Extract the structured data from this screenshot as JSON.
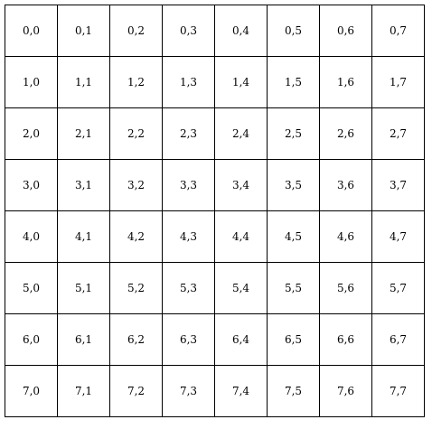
{
  "grid": {
    "rows": [
      [
        "0,0",
        "0,1",
        "0,2",
        "0,3",
        "0,4",
        "0,5",
        "0,6",
        "0,7"
      ],
      [
        "1,0",
        "1,1",
        "1,2",
        "1,3",
        "1,4",
        "1,5",
        "1,6",
        "1,7"
      ],
      [
        "2,0",
        "2,1",
        "2,2",
        "2,3",
        "2,4",
        "2,5",
        "2,6",
        "2,7"
      ],
      [
        "3,0",
        "3,1",
        "3,2",
        "3,3",
        "3,4",
        "3,5",
        "3,6",
        "3,7"
      ],
      [
        "4,0",
        "4,1",
        "4,2",
        "4,3",
        "4,4",
        "4,5",
        "4,6",
        "4,7"
      ],
      [
        "5,0",
        "5,1",
        "5,2",
        "5,3",
        "5,4",
        "5,5",
        "5,6",
        "5,7"
      ],
      [
        "6,0",
        "6,1",
        "6,2",
        "6,3",
        "6,4",
        "6,5",
        "6,6",
        "6,7"
      ],
      [
        "7,0",
        "7,1",
        "7,2",
        "7,3",
        "7,4",
        "7,5",
        "7,6",
        "7,7"
      ]
    ],
    "border_color": "#000000",
    "text_color": "#000000",
    "background_color": "#ffffff"
  }
}
